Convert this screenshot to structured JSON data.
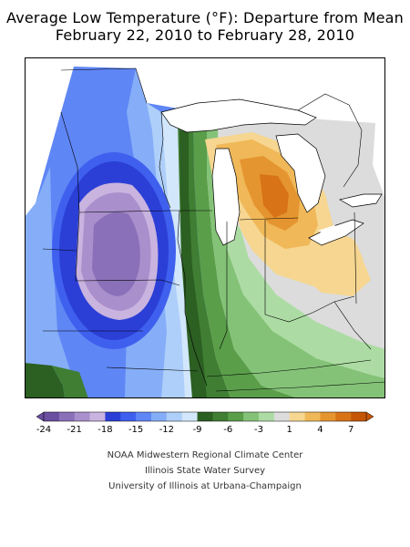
{
  "title": {
    "line1": "Average Low Temperature (°F): Departure from Mean",
    "line2": "February 22, 2010 to February 28, 2010"
  },
  "legend": {
    "tick_labels": [
      "-24",
      "-21",
      "-18",
      "-15",
      "-12",
      "-9",
      "-6",
      "-3",
      "1",
      "4",
      "7"
    ],
    "colors": [
      "#6a4ea0",
      "#8a70b8",
      "#a98fcc",
      "#c9b3df",
      "#2b3fd6",
      "#3f60ee",
      "#5f86f5",
      "#86aef8",
      "#aecff9",
      "#d2e7fb",
      "#2c5f22",
      "#3f7e33",
      "#5a9e4a",
      "#84c377",
      "#acdca3",
      "#dcdcdc",
      "#f6d690",
      "#f0b858",
      "#e59530",
      "#d87318",
      "#c55608"
    ]
  },
  "map": {
    "region": "Upper Midwest / Great Lakes",
    "legend_type": "diverging color scale with arrow ends",
    "pattern": "cold anomaly in the west (minimum near -21°F over Minnesota/Iowa), warm anomaly over Michigan (up to about +7°F)"
  },
  "credits": {
    "line1": "NOAA Midwestern Regional Climate Center",
    "line2": "Illinois State Water Survey",
    "line3": "University of Illinois at Urbana-Champaign"
  }
}
